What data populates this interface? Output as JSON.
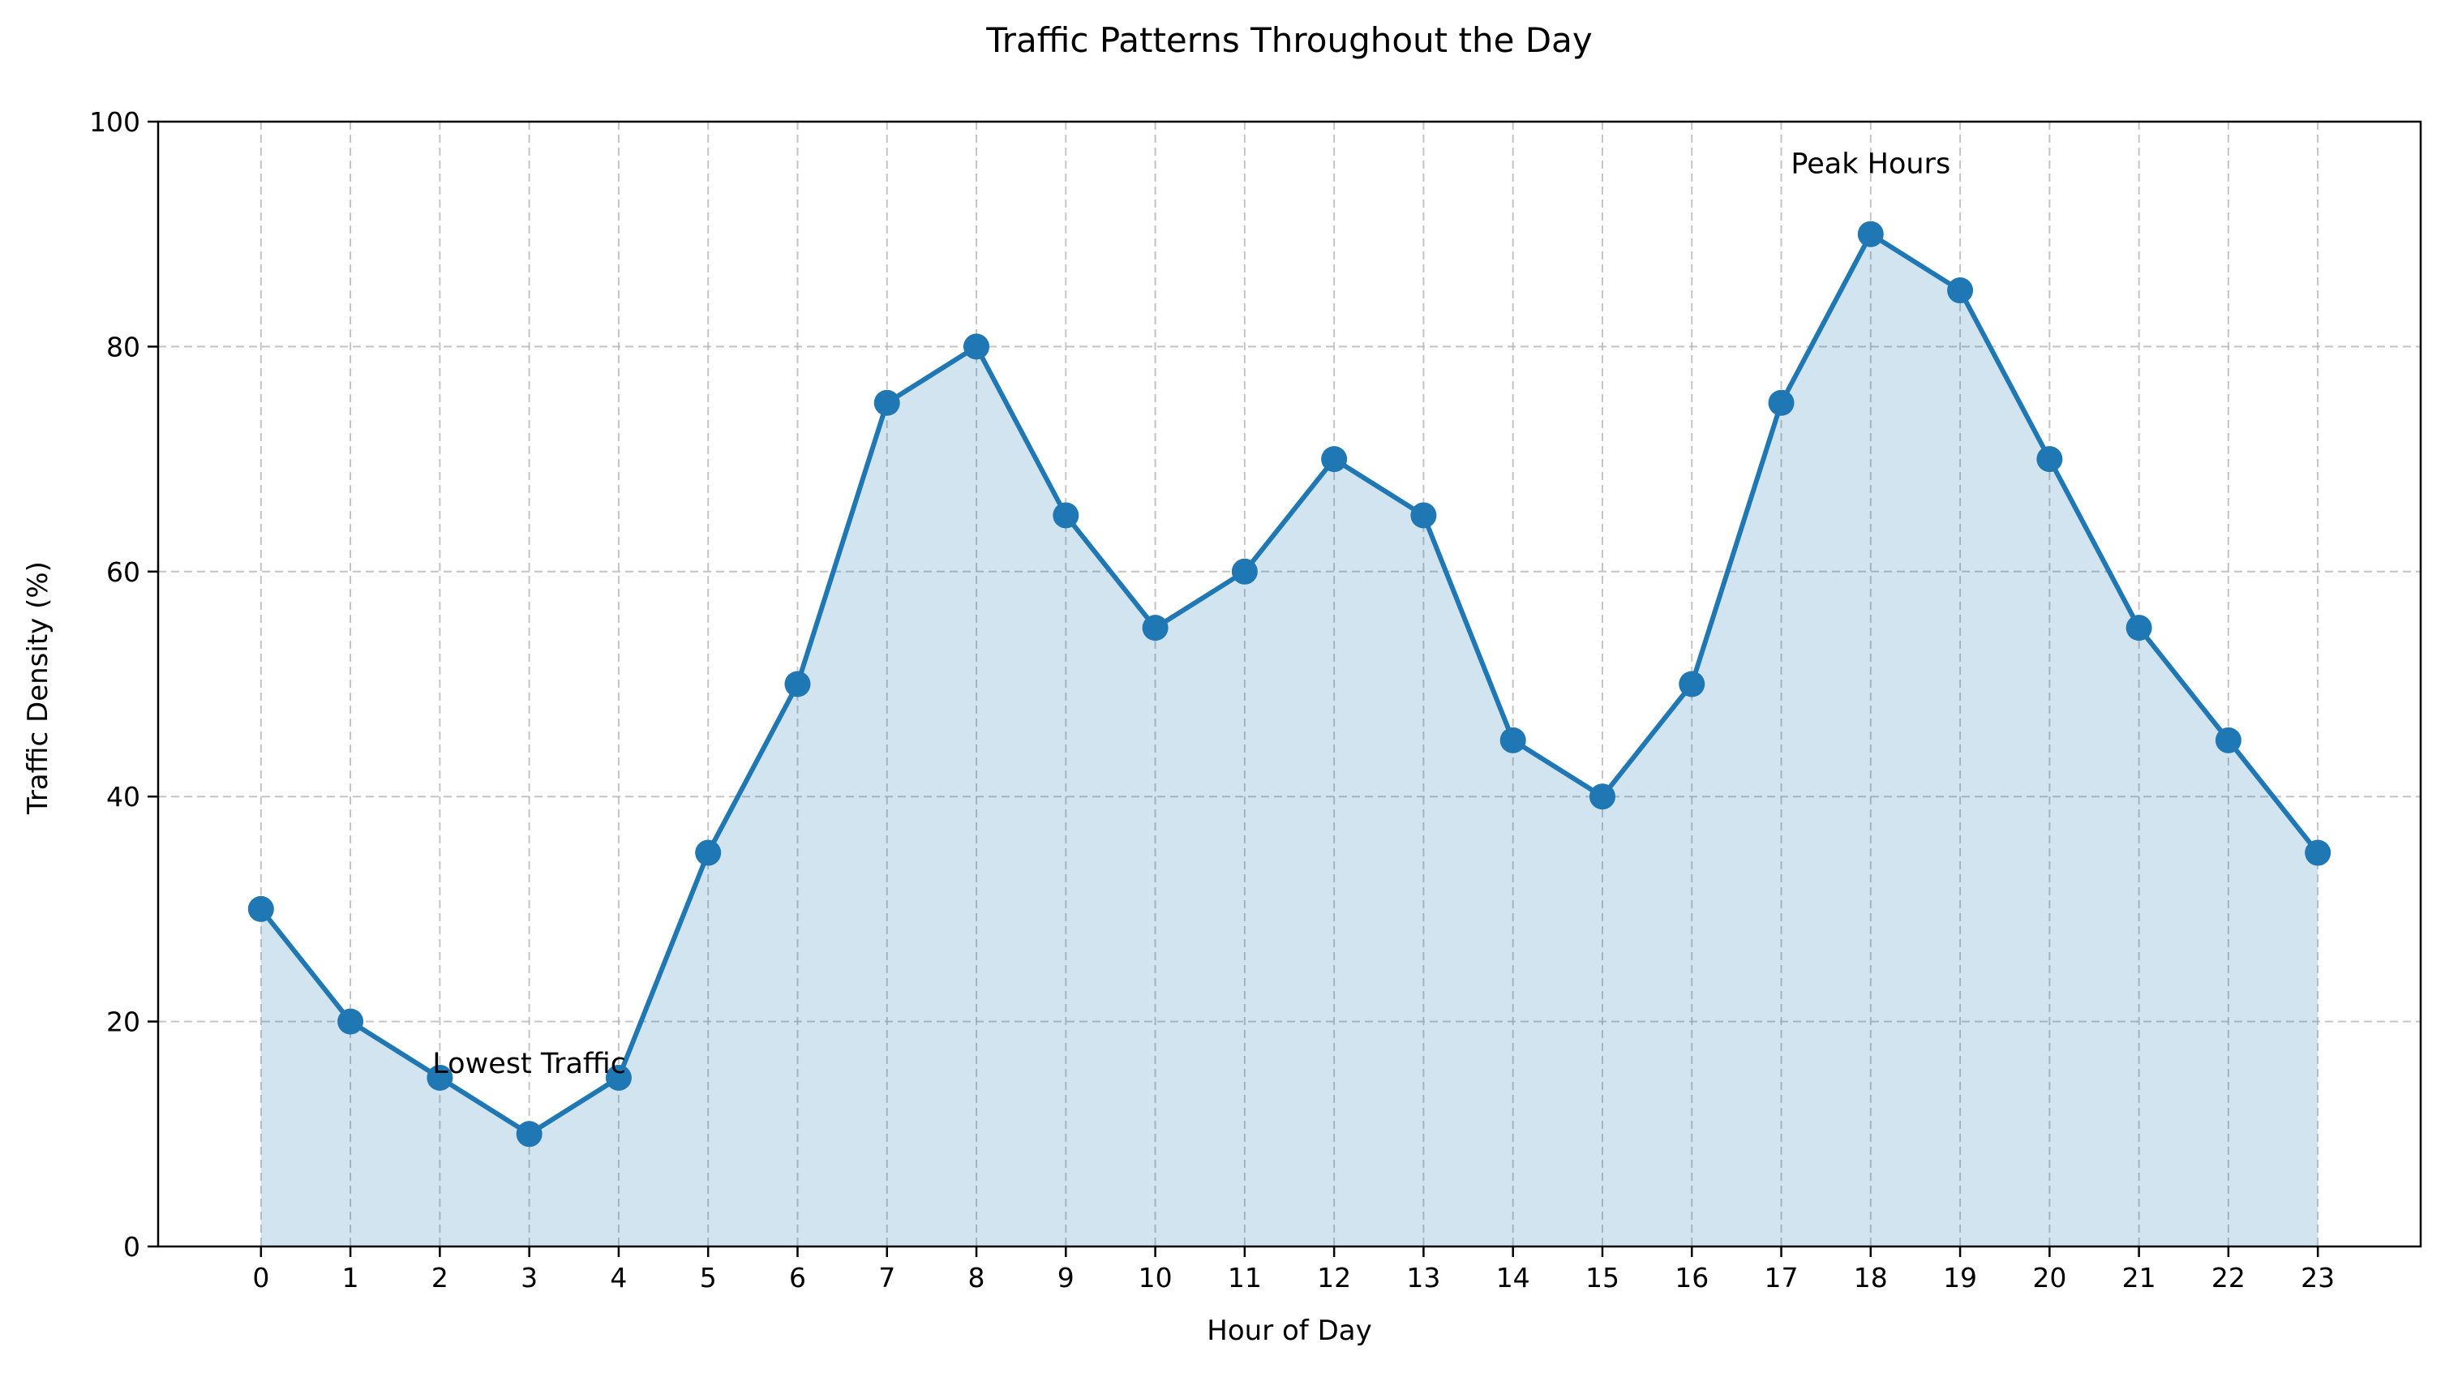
{
  "chart_data": {
    "type": "line",
    "title": "Traffic Patterns Throughout the Day",
    "xlabel": "Hour of Day",
    "ylabel": "Traffic Density (%)",
    "x": [
      0,
      1,
      2,
      3,
      4,
      5,
      6,
      7,
      8,
      9,
      10,
      11,
      12,
      13,
      14,
      15,
      16,
      17,
      18,
      19,
      20,
      21,
      22,
      23
    ],
    "y": [
      30,
      20,
      15,
      10,
      15,
      35,
      50,
      75,
      80,
      65,
      55,
      60,
      70,
      65,
      45,
      40,
      50,
      75,
      90,
      85,
      70,
      55,
      45,
      35
    ],
    "xlim": [
      -1.15,
      24.15
    ],
    "ylim": [
      0,
      100
    ],
    "yticks": [
      0,
      20,
      40,
      60,
      80,
      100
    ],
    "grid": true,
    "filled_area": true,
    "markers": true,
    "line_color": "#1f77b4",
    "fill_color": "#1f77b4",
    "fill_alpha": 0.2,
    "annotations": [
      {
        "text": "Lowest Traffic",
        "x": 3,
        "y": 15
      },
      {
        "text": "Peak Hours",
        "x": 18,
        "y": 95
      }
    ]
  }
}
